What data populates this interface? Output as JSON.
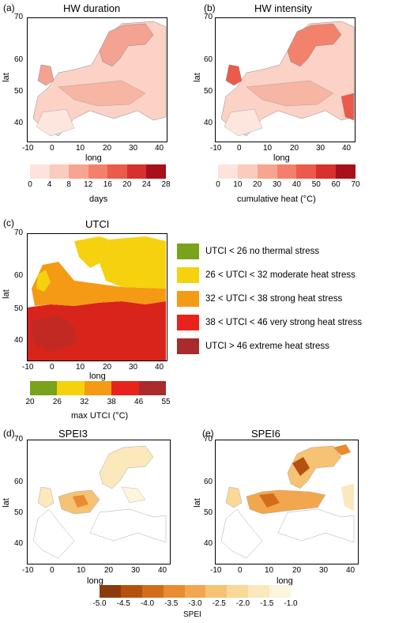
{
  "panels": {
    "a": {
      "label": "(a)",
      "title": "HW duration",
      "xlabel": "long",
      "ylabel": "lat",
      "xticks": [
        "-10",
        "0",
        "10",
        "20",
        "30",
        "40"
      ],
      "yticks": [
        "70",
        "60",
        "50",
        "40"
      ]
    },
    "b": {
      "label": "(b)",
      "title": "HW intensity",
      "xlabel": "long",
      "ylabel": "lat",
      "xticks": [
        "-10",
        "0",
        "10",
        "20",
        "30",
        "40"
      ],
      "yticks": [
        "70",
        "60",
        "50",
        "40"
      ]
    },
    "c": {
      "label": "(c)",
      "title": "UTCI",
      "xlabel": "long",
      "ylabel": "lat",
      "xticks": [
        "-10",
        "0",
        "10",
        "20",
        "30",
        "40"
      ],
      "yticks": [
        "70",
        "60",
        "50",
        "40"
      ]
    },
    "d": {
      "label": "(d)",
      "title": "SPEI3",
      "xlabel": "long",
      "ylabel": "lat",
      "xticks": [
        "-10",
        "0",
        "10",
        "20",
        "30",
        "40"
      ],
      "yticks": [
        "70",
        "60",
        "50",
        "40"
      ]
    },
    "e": {
      "label": "(e)",
      "title": "SPEI6",
      "xlabel": "long",
      "ylabel": "lat",
      "xticks": [
        "-10",
        "0",
        "10",
        "20",
        "30",
        "40"
      ],
      "yticks": [
        "70",
        "60",
        "50",
        "40"
      ]
    }
  },
  "colorbars": {
    "days": {
      "label": "days",
      "ticks": [
        "0",
        "4",
        "8",
        "12",
        "16",
        "20",
        "24",
        "28"
      ],
      "colors": [
        "#fde3dc",
        "#fbcbbd",
        "#f7a590",
        "#f3806b",
        "#eb5a4a",
        "#d7302d",
        "#a8101b"
      ]
    },
    "heat": {
      "label": "cumulative heat (°C)",
      "ticks": [
        "0",
        "10",
        "20",
        "30",
        "40",
        "50",
        "60",
        "70"
      ],
      "colors": [
        "#fde3dc",
        "#fbcbbd",
        "#f7a590",
        "#f3806b",
        "#eb5a4a",
        "#d7302d",
        "#a8101b"
      ]
    },
    "utci": {
      "label": "max UTCI (°C)",
      "ticks": [
        "20",
        "26",
        "32",
        "38",
        "46",
        "55"
      ],
      "colors": [
        "#7aa21a",
        "#f5d20d",
        "#f49a14",
        "#e8231b",
        "#a92b2b"
      ]
    },
    "spei": {
      "label": "SPEI",
      "ticks": [
        "-5.0",
        "-4.5",
        "-4.0",
        "-3.5",
        "-3.0",
        "-2.5",
        "-2.0",
        "-1.5",
        "-1.0"
      ],
      "colors": [
        "#8c3b0c",
        "#b5510f",
        "#d36d1c",
        "#e98b30",
        "#f2a74f",
        "#f6c273",
        "#f9d898",
        "#fbe8bb",
        "#fdf5dc"
      ]
    }
  },
  "utci_legend": [
    {
      "text": "UTCI < 26 no thermal stress",
      "color": "#7aa21a"
    },
    {
      "text": "26 < UTCI < 32 moderate heat stress",
      "color": "#f5d20d"
    },
    {
      "text": "32 < UTCI < 38 strong heat stress",
      "color": "#f49a14"
    },
    {
      "text": "38 < UTCI < 46 very strong heat stress",
      "color": "#e8231b"
    },
    {
      "text": "UTCI > 46 extreme heat stress",
      "color": "#a92b2b"
    }
  ]
}
